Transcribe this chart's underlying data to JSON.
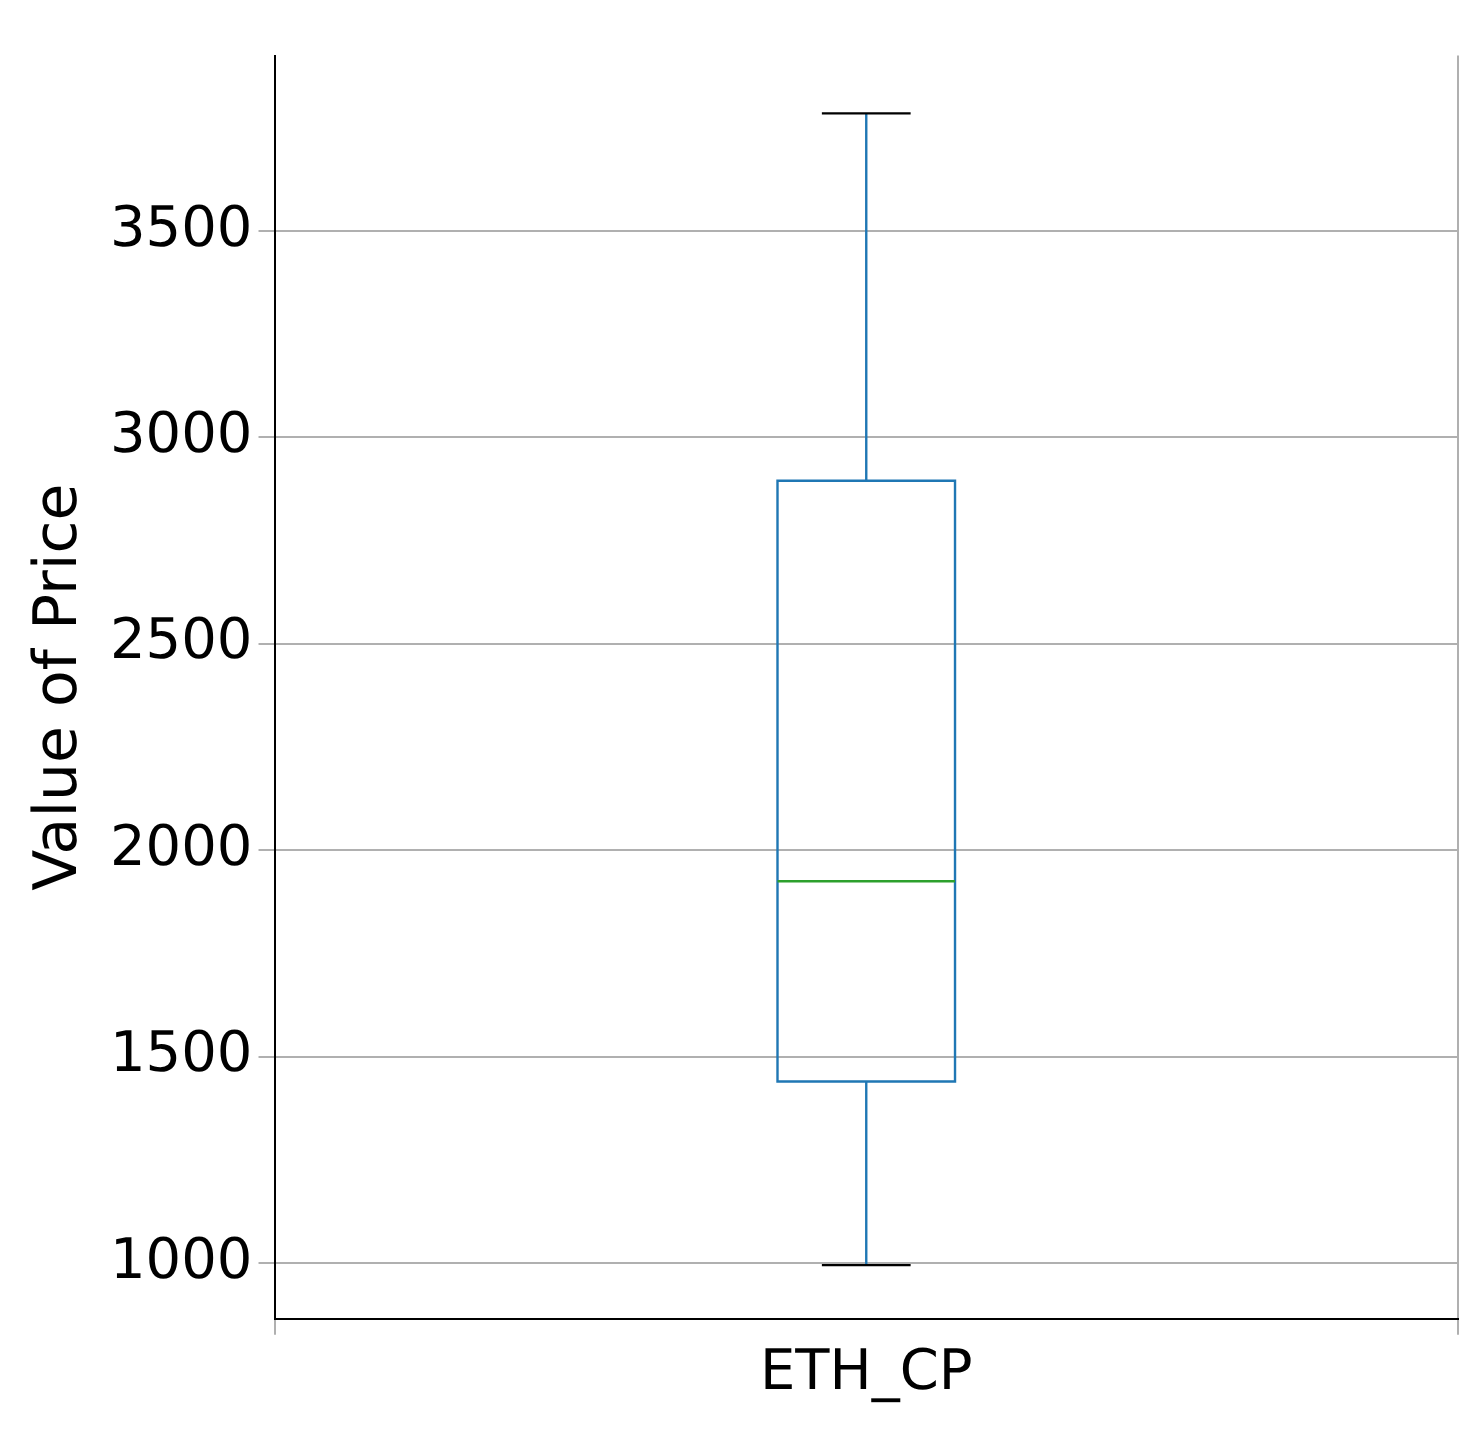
{
  "chart_data": {
    "type": "box",
    "ylabel": "Value of Price",
    "categories": [
      "ETH_CP"
    ],
    "boxes": [
      {
        "low": 995,
        "q1": 1440,
        "median": 1925,
        "q3": 2895,
        "high": 3785
      }
    ],
    "color": "#1f77b4",
    "ylim": [
      865,
      3925
    ],
    "yticks": [
      1000,
      1500,
      2000,
      2500,
      3000,
      3500
    ],
    "grid": true
  }
}
